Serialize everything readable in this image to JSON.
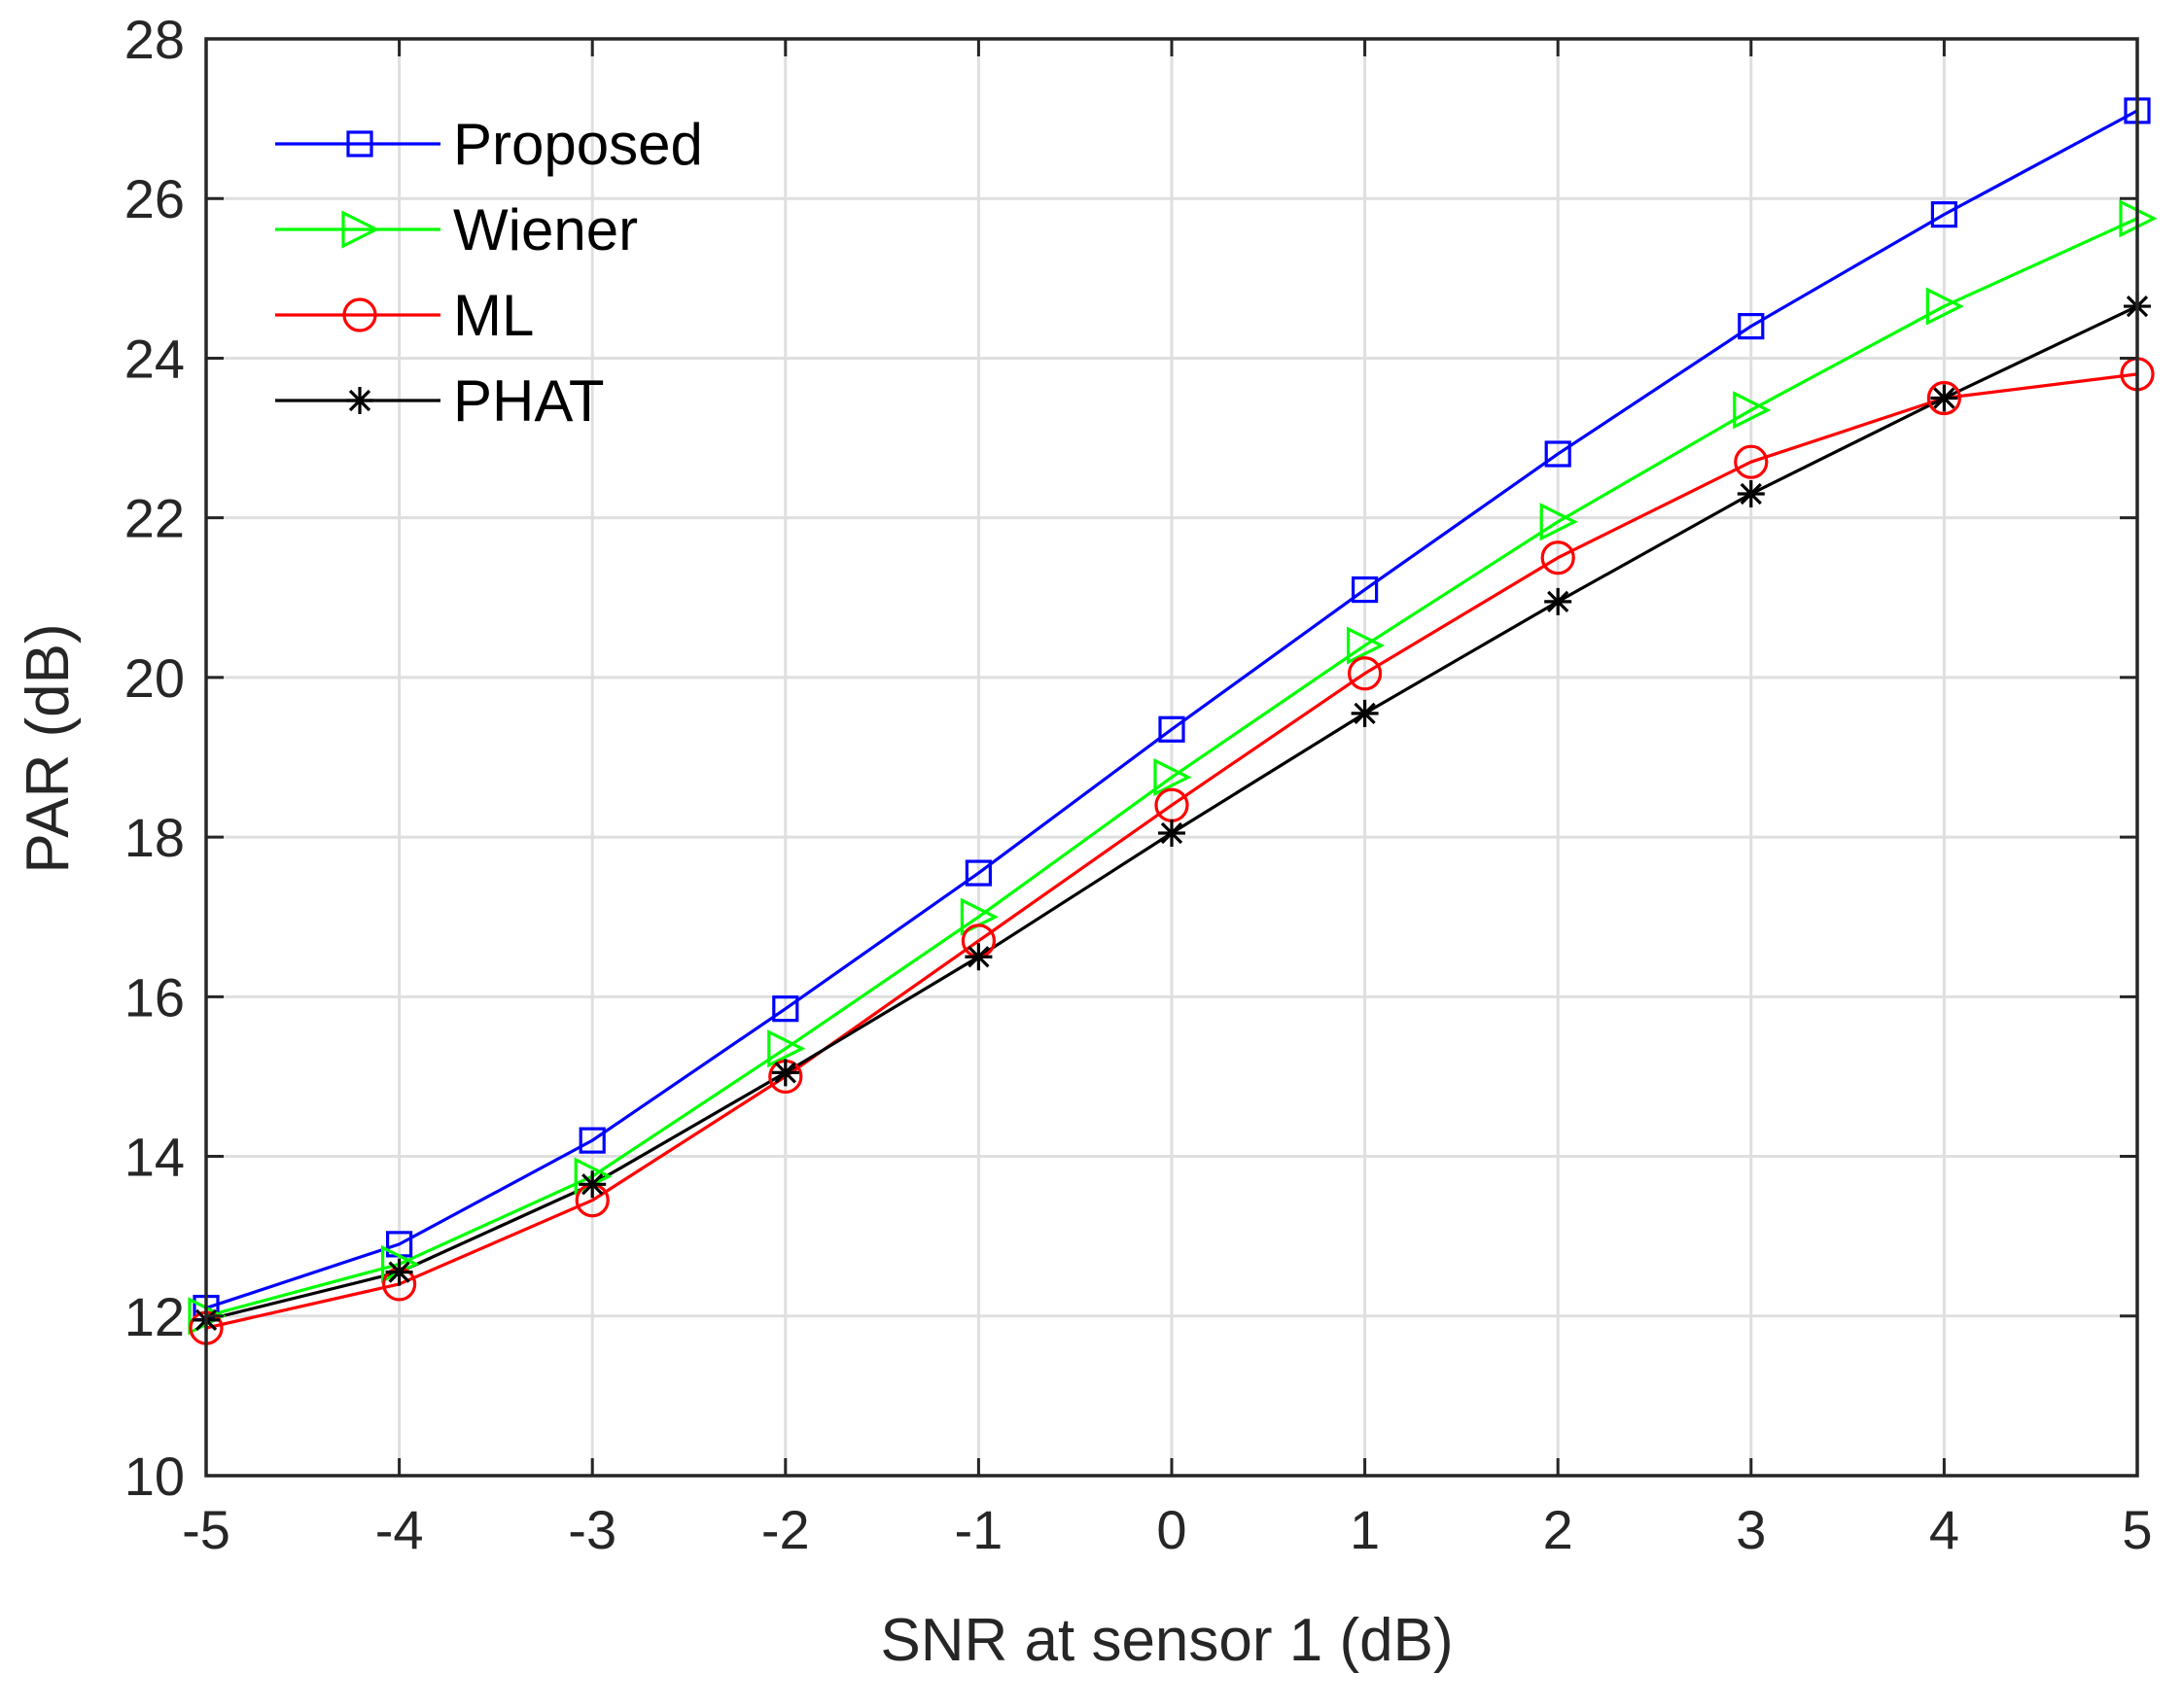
{
  "chart_data": {
    "type": "line",
    "title": "",
    "xlabel": "SNR at sensor 1 (dB)",
    "ylabel": "PAR (dB)",
    "xlim": [
      -5,
      5
    ],
    "ylim": [
      10,
      28
    ],
    "x": [
      -5,
      -4,
      -3,
      -2,
      -1,
      0,
      1,
      2,
      3,
      4,
      5
    ],
    "xticks": [
      -5,
      -4,
      -3,
      -2,
      -1,
      0,
      1,
      2,
      3,
      4,
      5
    ],
    "xtick_labels": [
      "-5",
      "-4",
      "-3",
      "-2",
      "-1",
      "0",
      "1",
      "2",
      "3",
      "4",
      "5"
    ],
    "yticks": [
      10,
      12,
      14,
      16,
      18,
      20,
      22,
      24,
      26,
      28
    ],
    "ytick_labels": [
      "10",
      "12",
      "14",
      "16",
      "18",
      "20",
      "22",
      "24",
      "26",
      "28"
    ],
    "grid": true,
    "legend_position": "top-left",
    "series": [
      {
        "name": "Proposed",
        "color": "#0000ff",
        "marker": "square",
        "values": [
          12.1,
          12.9,
          14.2,
          15.85,
          17.55,
          19.35,
          21.1,
          22.8,
          24.4,
          25.8,
          27.1
        ]
      },
      {
        "name": "Wiener",
        "color": "#00ff00",
        "marker": "triangle-right",
        "values": [
          12.0,
          12.65,
          13.75,
          15.35,
          17.0,
          18.75,
          20.4,
          21.95,
          23.35,
          24.65,
          25.75
        ]
      },
      {
        "name": "ML",
        "color": "#ff0000",
        "marker": "circle",
        "values": [
          11.85,
          12.4,
          13.45,
          15.0,
          16.7,
          18.4,
          20.05,
          21.5,
          22.7,
          23.5,
          23.8
        ]
      },
      {
        "name": "PHAT",
        "color": "#000000",
        "marker": "asterisk",
        "values": [
          11.95,
          12.55,
          13.65,
          15.05,
          16.5,
          18.05,
          19.55,
          20.95,
          22.3,
          23.5,
          24.65
        ]
      }
    ]
  }
}
